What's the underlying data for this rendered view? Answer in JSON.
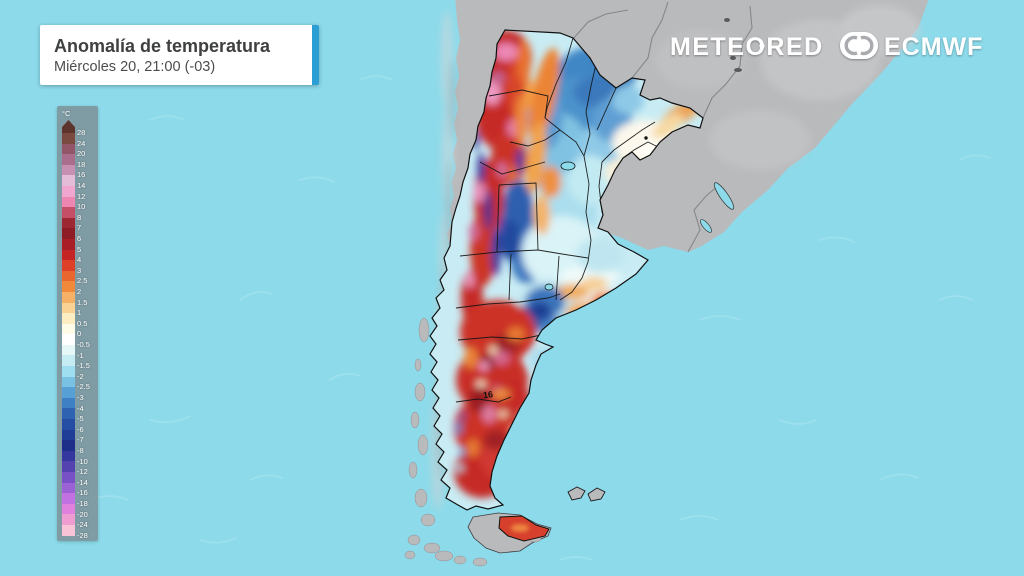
{
  "header": {
    "title": "Anomalía de temperatura",
    "subtitle": "Miércoles 20, 21:00 (-03)"
  },
  "branding": {
    "meteored": "METEORED",
    "ecmwf": "ECMWF"
  },
  "legend": {
    "unit": "°C",
    "ticks": [
      "28",
      "24",
      "20",
      "18",
      "16",
      "14",
      "12",
      "10",
      "8",
      "7",
      "6",
      "5",
      "4",
      "3",
      "2.5",
      "2",
      "1.5",
      "1",
      "0.5",
      "0",
      "-0.5",
      "-1",
      "-1.5",
      "-2",
      "-2.5",
      "-3",
      "-4",
      "-5",
      "-6",
      "-7",
      "-8",
      "-10",
      "-12",
      "-14",
      "-16",
      "-18",
      "-20",
      "-24",
      "-28"
    ],
    "cell_colors": [
      "#7a4a40",
      "#935668",
      "#ab6d8c",
      "#c78fb2",
      "#e5bcd8",
      "#f0a6ce",
      "#ee86b2",
      "#c44f66",
      "#9e2734",
      "#8e1c27",
      "#a81d26",
      "#c42524",
      "#dd3f28",
      "#e9662e",
      "#f08a3a",
      "#f6b167",
      "#fad293",
      "#fcedc2",
      "#fefbe9",
      "#ffffff",
      "#e6f7f8",
      "#c5ecf3",
      "#9fdef0",
      "#79c2e4",
      "#57a0d5",
      "#3e80c3",
      "#2f63b2",
      "#264da4",
      "#1f3c96",
      "#1d2f88",
      "#34379d",
      "#5442b1",
      "#7751c5",
      "#9b62d5",
      "#c171e1",
      "#e082dd",
      "#ef9dd1",
      "#f8c3d7"
    ],
    "arrow_color": "#5d342c"
  },
  "map": {
    "contour_label": "16",
    "ocean_color": "#8cdaea",
    "land_color": "#b9babc",
    "accent_color": "#2b9fd3",
    "border_color": "#101010"
  }
}
